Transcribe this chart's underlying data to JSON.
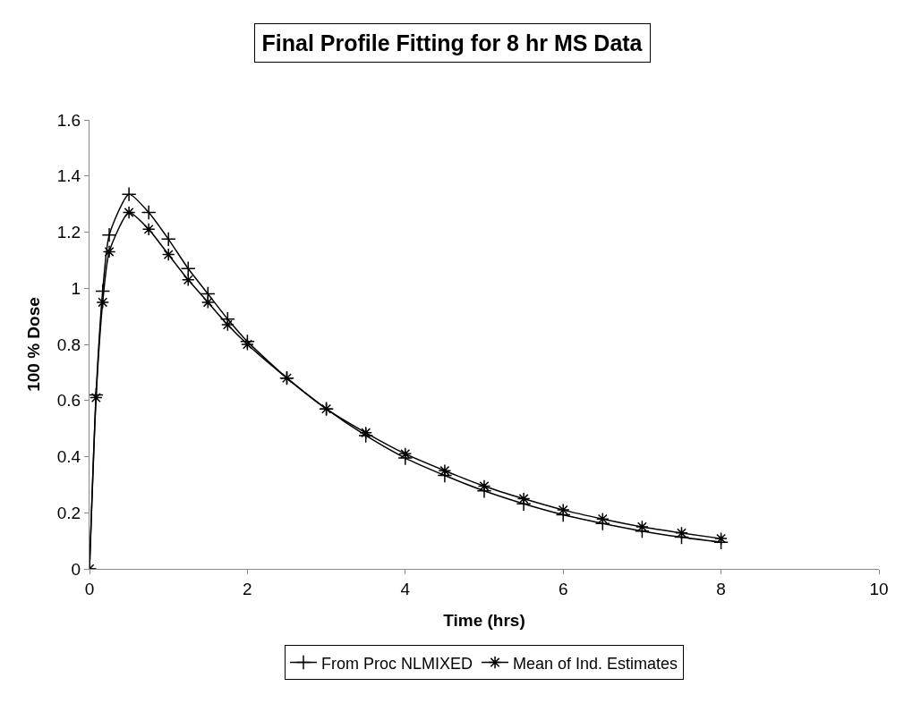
{
  "chart_data": {
    "type": "line",
    "title": "Final Profile Fitting for 8 hr MS Data",
    "xlabel": "Time (hrs)",
    "ylabel": "100 % Dose",
    "x": [
      0,
      0.083,
      0.167,
      0.25,
      0.5,
      0.75,
      1,
      1.25,
      1.5,
      1.75,
      2,
      2.5,
      3,
      3.5,
      4,
      4.5,
      5,
      5.5,
      6,
      6.5,
      7,
      7.5,
      8
    ],
    "series": [
      {
        "name": "From Proc NLMIXED",
        "color": "#000000",
        "marker": "cross",
        "values": [
          0,
          0.62,
          0.99,
          1.19,
          1.335,
          1.27,
          1.175,
          1.07,
          0.98,
          0.89,
          0.81,
          0.68,
          0.57,
          0.475,
          0.395,
          0.333,
          0.278,
          0.232,
          0.193,
          0.162,
          0.135,
          0.113,
          0.095
        ]
      },
      {
        "name": "Mean of Ind. Estimates",
        "color": "#000000",
        "marker": "cross",
        "values": [
          0,
          0.61,
          0.95,
          1.13,
          1.27,
          1.21,
          1.12,
          1.03,
          0.95,
          0.87,
          0.8,
          0.68,
          0.57,
          0.485,
          0.41,
          0.35,
          0.295,
          0.25,
          0.21,
          0.178,
          0.15,
          0.128,
          0.108
        ]
      }
    ],
    "xlim": [
      0,
      10
    ],
    "xticks": [
      0,
      2,
      4,
      6,
      8,
      10
    ],
    "ylim": [
      0,
      1.6
    ],
    "yticks": [
      0,
      0.2,
      0.4,
      0.6,
      0.8,
      1,
      1.2,
      1.4,
      1.6
    ],
    "grid": false,
    "legend": "bottom",
    "line_style": "solid"
  }
}
